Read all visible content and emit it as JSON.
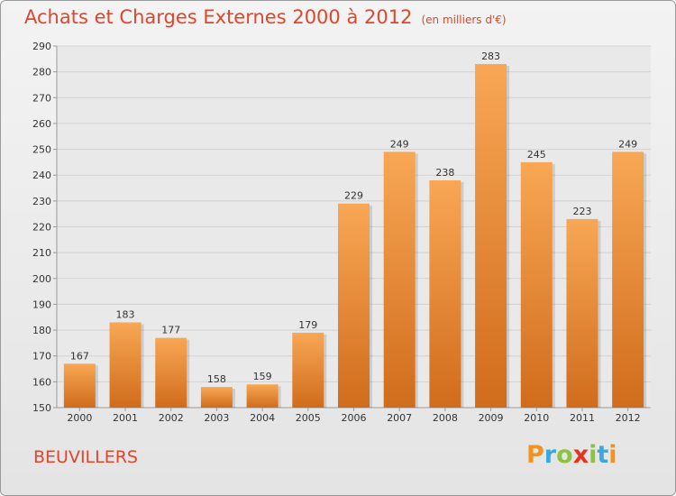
{
  "header": {
    "title": "Achats et Charges Externes 2000 à 2012",
    "unit": "(en milliers d'€)"
  },
  "footer": {
    "town": "BEUVILLERS",
    "logo_text": "Proxiti"
  },
  "colors": {
    "title": "#e0462b",
    "bar_top": "#f8a754",
    "bar_bottom": "#d06c1c",
    "grid": "#d2d2d2",
    "axis": "#9a9a9a",
    "logo_letters": [
      "#f3921e",
      "#3aa8df",
      "#8cc43e",
      "#e8331c",
      "#8cc43e",
      "#3aa8df",
      "#f3921e"
    ]
  },
  "chart_data": {
    "type": "bar",
    "title": "Achats et Charges Externes 2000 à 2012",
    "subtitle": "(en milliers d'€)",
    "categories": [
      "2000",
      "2001",
      "2002",
      "2003",
      "2004",
      "2005",
      "2006",
      "2007",
      "2008",
      "2009",
      "2010",
      "2011",
      "2012"
    ],
    "values": [
      167,
      183,
      177,
      158,
      159,
      179,
      229,
      249,
      238,
      283,
      245,
      223,
      249
    ],
    "ylim": [
      150,
      290
    ],
    "yticks": [
      150,
      160,
      170,
      180,
      190,
      200,
      210,
      220,
      230,
      240,
      250,
      260,
      270,
      280,
      290
    ],
    "grid": true,
    "data_labels": true
  }
}
